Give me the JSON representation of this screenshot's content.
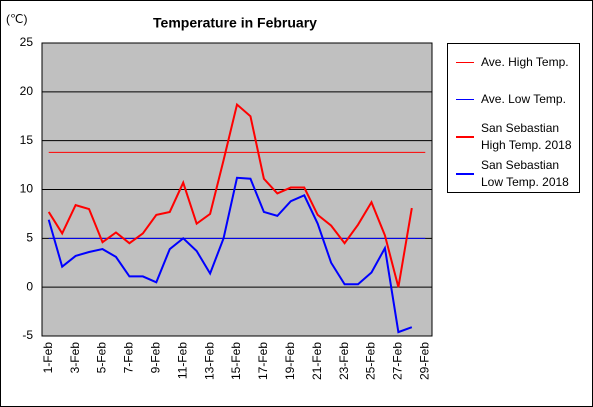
{
  "chart_data": {
    "type": "line",
    "title": "Temperature in February",
    "y_label": "(℃)",
    "categories": [
      "1-Feb",
      null,
      "3-Feb",
      null,
      "5-Feb",
      null,
      "7-Feb",
      null,
      "9-Feb",
      null,
      "11-Feb",
      null,
      "13-Feb",
      null,
      "15-Feb",
      null,
      "17-Feb",
      null,
      "19-Feb",
      null,
      "21-Feb",
      null,
      "23-Feb",
      null,
      "25-Feb",
      null,
      "27-Feb",
      null,
      "29-Feb"
    ],
    "series": [
      {
        "name": "Ave. High Temp.",
        "color": "#ff0000",
        "width": 1,
        "values": [
          13.8,
          13.8,
          13.8,
          13.8,
          13.8,
          13.8,
          13.8,
          13.8,
          13.8,
          13.8,
          13.8,
          13.8,
          13.8,
          13.8,
          13.8,
          13.8,
          13.8,
          13.8,
          13.8,
          13.8,
          13.8,
          13.8,
          13.8,
          13.8,
          13.8,
          13.8,
          13.8,
          13.8,
          13.8
        ]
      },
      {
        "name": "Ave. Low Temp.",
        "color": "#0000ff",
        "width": 1,
        "values": [
          5,
          5,
          5,
          5,
          5,
          5,
          5,
          5,
          5,
          5,
          5,
          5,
          5,
          5,
          5,
          5,
          5,
          5,
          5,
          5,
          5,
          5,
          5,
          5,
          5,
          5,
          5,
          5,
          5
        ]
      },
      {
        "name": "San Sebastian\nHigh Temp. 2018",
        "color": "#ff0000",
        "width": 2,
        "values": [
          7.7,
          5.5,
          8.4,
          8.0,
          4.6,
          5.6,
          4.5,
          5.5,
          7.4,
          7.7,
          10.7,
          6.5,
          7.5,
          13.0,
          18.7,
          17.5,
          11.1,
          9.6,
          10.2,
          10.2,
          7.4,
          6.3,
          4.5,
          6.4,
          8.7,
          5.3,
          0.0,
          8.1,
          null
        ]
      },
      {
        "name": "San Sebastian\nLow Temp. 2018",
        "color": "#0000ff",
        "width": 2,
        "values": [
          6.9,
          2.1,
          3.2,
          3.6,
          3.9,
          3.1,
          1.1,
          1.1,
          0.5,
          3.9,
          5.0,
          3.7,
          1.4,
          5.0,
          11.2,
          11.1,
          7.7,
          7.3,
          8.8,
          9.4,
          6.5,
          2.5,
          0.3,
          0.3,
          1.5,
          4.0,
          -4.6,
          -4.1,
          null
        ]
      }
    ],
    "ylim": [
      -5,
      25
    ],
    "yticks": [
      -5,
      0,
      5,
      10,
      15,
      20,
      25
    ],
    "grid": true,
    "legend": "right"
  }
}
